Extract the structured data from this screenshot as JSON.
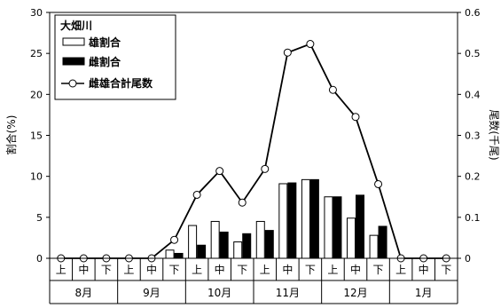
{
  "chart_data": {
    "type": "bar",
    "title": "大畑川",
    "ylabel": "割合(%)",
    "y2label": "尾数(千尾)",
    "ylim": [
      0,
      30
    ],
    "y2lim": [
      0,
      0.6
    ],
    "yticks": [
      0,
      5,
      10,
      15,
      20,
      25,
      30
    ],
    "y2ticks": [
      "0",
      "0.1",
      "0.2",
      "0.3",
      "0.4",
      "0.5",
      "0.6"
    ],
    "categories": [
      "上",
      "中",
      "下",
      "上",
      "中",
      "下",
      "上",
      "中",
      "下",
      "上",
      "中",
      "下",
      "上",
      "中",
      "下",
      "上",
      "中",
      "下"
    ],
    "months": [
      "8月",
      "9月",
      "10月",
      "11月",
      "12月",
      "1月"
    ],
    "legend_position": "top-left",
    "series": [
      {
        "name": "雄割合",
        "kind": "bar",
        "axis": "left",
        "color": "#ffffff",
        "values": [
          0,
          0,
          0,
          0,
          0,
          1.0,
          4.0,
          4.5,
          2.0,
          4.5,
          9.1,
          9.6,
          7.5,
          4.9,
          2.8,
          0,
          0,
          0
        ]
      },
      {
        "name": "雌割合",
        "kind": "bar",
        "axis": "left",
        "color": "#000000",
        "values": [
          0,
          0,
          0,
          0,
          0,
          0.6,
          1.6,
          3.2,
          3.0,
          3.4,
          9.2,
          9.6,
          7.5,
          7.7,
          3.9,
          0,
          0,
          0
        ]
      },
      {
        "name": "雌雄合計尾数",
        "kind": "line",
        "axis": "right",
        "color": "#000000",
        "values": [
          0,
          0,
          0,
          0,
          0,
          0.045,
          0.155,
          0.213,
          0.136,
          0.218,
          0.502,
          0.523,
          0.411,
          0.345,
          0.181,
          0,
          0,
          0
        ]
      }
    ]
  }
}
